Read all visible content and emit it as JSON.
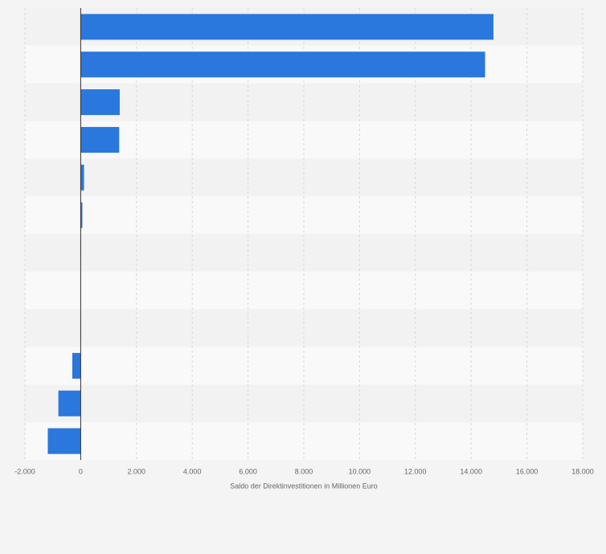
{
  "chart_data": {
    "type": "barh",
    "x_label": "Saldo der Direktinvestitionen in Millionen Euro",
    "categories": [
      null,
      null,
      null,
      null,
      null,
      null,
      null,
      null,
      null,
      null,
      null,
      null
    ],
    "values": [
      14800,
      14500,
      1400,
      1380,
      120,
      60,
      10,
      0,
      10,
      -300,
      -800,
      -1180
    ],
    "color": "#2a77dd",
    "xlim": [
      -2000,
      18000
    ],
    "xticks": [
      {
        "value": -2000,
        "label": "-2.000"
      },
      0,
      {
        "value": 2000,
        "label": "2.000"
      },
      {
        "value": 4000,
        "label": "4.000"
      },
      {
        "value": 6000,
        "label": "6.000"
      },
      {
        "value": 8000,
        "label": "8.000"
      },
      {
        "value": 10000,
        "label": "10.000"
      },
      {
        "value": 12000,
        "label": "12.000"
      },
      {
        "value": 14000,
        "label": "14.000"
      },
      {
        "value": 16000,
        "label": "16.000"
      },
      {
        "value": 18000,
        "label": "18.000"
      }
    ],
    "grid": true
  }
}
